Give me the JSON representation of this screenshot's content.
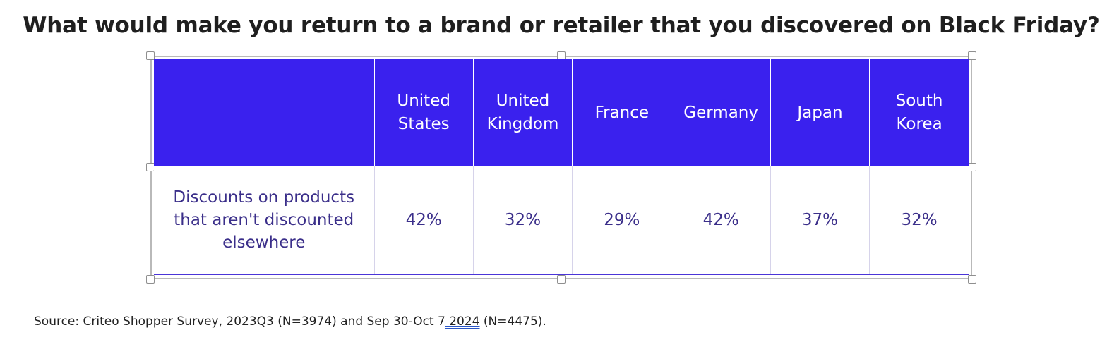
{
  "title": "What would make you return to a brand or retailer that you discovered on Black Friday?",
  "table": {
    "header": {
      "corner": "",
      "columns": [
        {
          "line1": "United",
          "line2": "States"
        },
        {
          "line1": "United",
          "line2": "Kingdom"
        },
        {
          "line1": "France",
          "line2": ""
        },
        {
          "line1": "Germany",
          "line2": ""
        },
        {
          "line1": "Japan",
          "line2": ""
        },
        {
          "line1": "South",
          "line2": "Korea"
        }
      ]
    },
    "rows": [
      {
        "label": {
          "line1": "Discounts on products",
          "line2": "that aren't discounted",
          "line3": "elsewhere"
        },
        "values": [
          "42%",
          "32%",
          "29%",
          "42%",
          "37%",
          "32%"
        ]
      }
    ]
  },
  "source": {
    "before": "Source: Criteo Shopper Survey, 2023Q3 (N=3974) and Sep 30-Oct 7",
    "flagged": " 2024",
    "after": " (N=4475)."
  },
  "colors": {
    "header_bg": "#3a21ee",
    "header_text": "#ffffff",
    "body_text": "#3b2f8a",
    "spellcheck_underline": "#2a56c6"
  }
}
